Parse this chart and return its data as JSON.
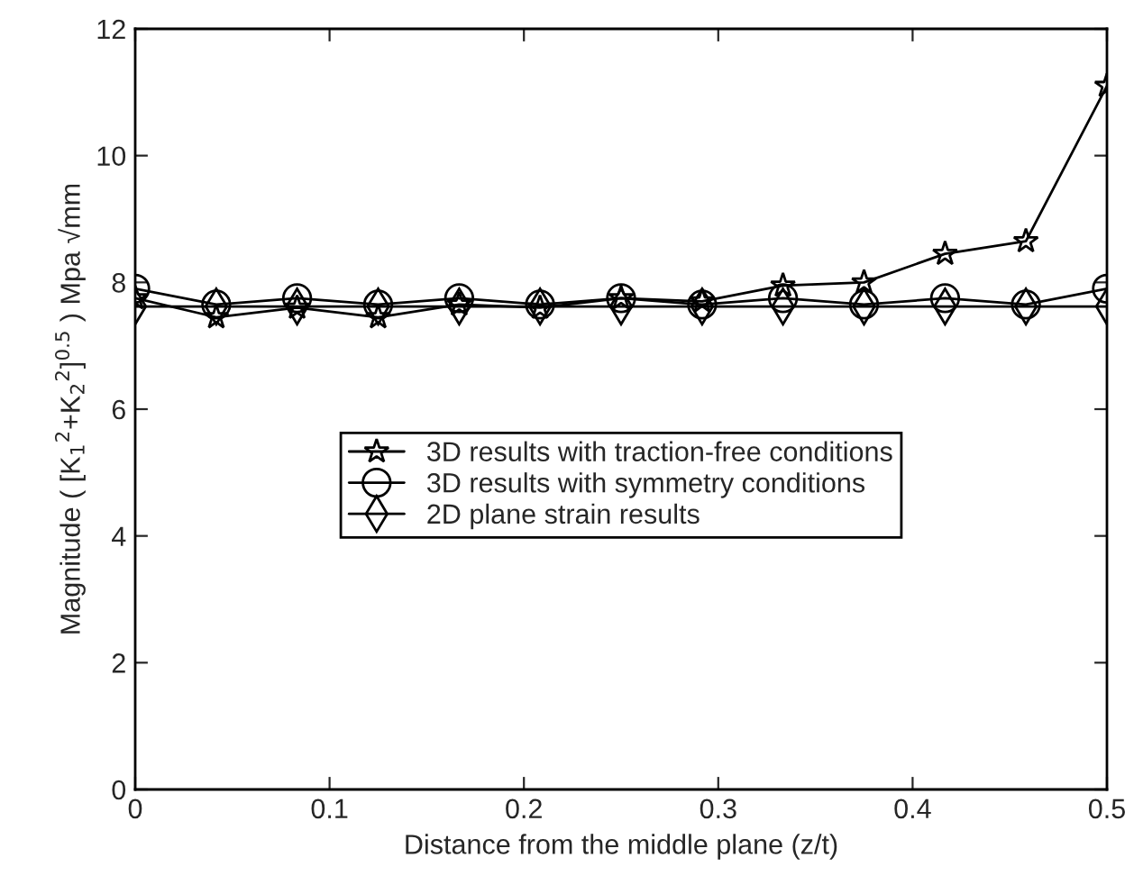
{
  "chart_data": {
    "type": "line",
    "xlabel": "Distance from the middle plane (z/t)",
    "ylabel": "Magnitude ( [K$_{1}$$^{2}$+K$_{2}$$^{2}$]$^{0.5}$ ) Mpa √mm",
    "x": [
      0,
      0.0417,
      0.0833,
      0.125,
      0.1667,
      0.2083,
      0.25,
      0.2917,
      0.3333,
      0.375,
      0.4167,
      0.4583,
      0.5
    ],
    "series": [
      {
        "name": "3D results with traction-free conditions",
        "color": "#000000",
        "marker": "star",
        "values": [
          7.75,
          7.45,
          7.6,
          7.45,
          7.65,
          7.6,
          7.75,
          7.7,
          7.95,
          8.0,
          8.45,
          8.65,
          11.1
        ]
      },
      {
        "name": "3D results with symmetry conditions",
        "color": "#000000",
        "marker": "circle",
        "values": [
          7.9,
          7.65,
          7.75,
          7.65,
          7.75,
          7.65,
          7.75,
          7.65,
          7.75,
          7.65,
          7.75,
          7.65,
          7.9
        ]
      },
      {
        "name": "2D plane strain results",
        "color": "#000000",
        "marker": "diamond",
        "values": [
          7.62,
          7.62,
          7.62,
          7.62,
          7.62,
          7.62,
          7.62,
          7.62,
          7.62,
          7.62,
          7.62,
          7.62,
          7.62
        ]
      }
    ],
    "xlim": [
      0,
      0.5
    ],
    "xticks": [
      0,
      0.1,
      0.2,
      0.3,
      0.4,
      0.5
    ],
    "ylim": [
      0,
      12
    ],
    "yticks": [
      0,
      2,
      4,
      6,
      8,
      10,
      12
    ],
    "grid": false,
    "legend": "center",
    "line_style": "solid"
  }
}
